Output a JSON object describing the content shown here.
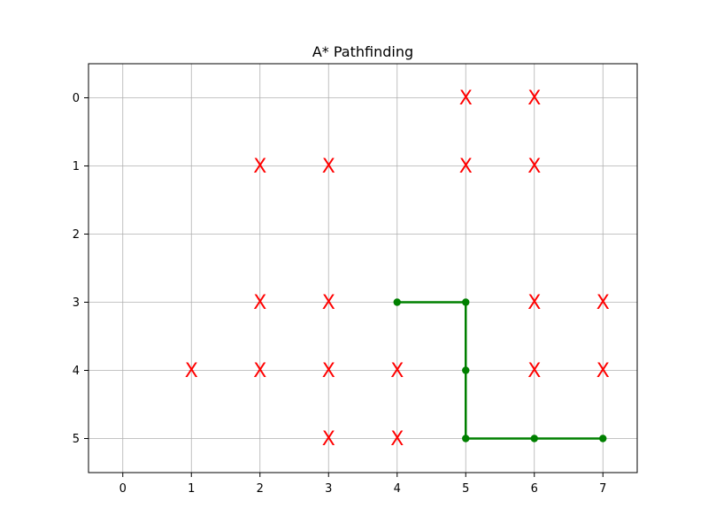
{
  "chart_data": {
    "type": "line",
    "title": "A* Pathfinding",
    "xlabel": "",
    "ylabel": "",
    "xlim": [
      -0.5,
      7.5
    ],
    "ylim": [
      5.5,
      -0.5
    ],
    "y_inverted": true,
    "grid": true,
    "x_ticks": [
      0,
      1,
      2,
      3,
      4,
      5,
      6,
      7
    ],
    "y_ticks": [
      0,
      1,
      2,
      3,
      4,
      5
    ],
    "series": [
      {
        "marker": "X",
        "color": "#ff0000",
        "points": [
          {
            "x": 5,
            "y": 0
          },
          {
            "x": 6,
            "y": 0
          },
          {
            "x": 2,
            "y": 1
          },
          {
            "x": 3,
            "y": 1
          },
          {
            "x": 5,
            "y": 1
          },
          {
            "x": 6,
            "y": 1
          },
          {
            "x": 2,
            "y": 3
          },
          {
            "x": 3,
            "y": 3
          },
          {
            "x": 6,
            "y": 3
          },
          {
            "x": 7,
            "y": 3
          },
          {
            "x": 1,
            "y": 4
          },
          {
            "x": 2,
            "y": 4
          },
          {
            "x": 3,
            "y": 4
          },
          {
            "x": 4,
            "y": 4
          },
          {
            "x": 6,
            "y": 4
          },
          {
            "x": 7,
            "y": 4
          },
          {
            "x": 3,
            "y": 5
          },
          {
            "x": 4,
            "y": 5
          }
        ]
      },
      {
        "marker": "o",
        "color": "#008000",
        "points": [
          {
            "x": 4,
            "y": 3
          },
          {
            "x": 5,
            "y": 3
          },
          {
            "x": 5,
            "y": 4
          },
          {
            "x": 5,
            "y": 5
          },
          {
            "x": 6,
            "y": 5
          },
          {
            "x": 7,
            "y": 5
          }
        ]
      }
    ]
  }
}
